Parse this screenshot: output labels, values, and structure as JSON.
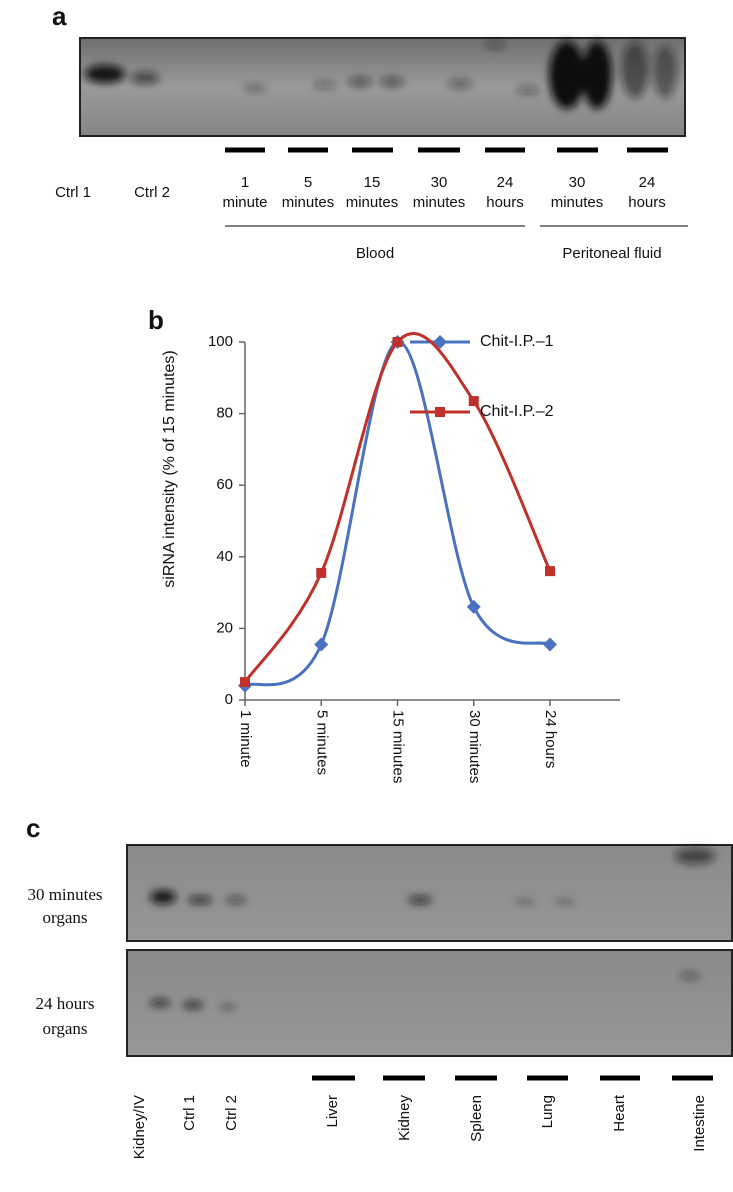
{
  "panel_a": {
    "label": "a",
    "control_lanes": [
      "Ctrl 1",
      "Ctrl 2"
    ],
    "time_lanes": [
      [
        "1",
        "minute"
      ],
      [
        "5",
        "minutes"
      ],
      [
        "15",
        "minutes"
      ],
      [
        "30",
        "minutes"
      ],
      [
        "24",
        "hours"
      ],
      [
        "30",
        "minutes"
      ],
      [
        "24",
        "hours"
      ]
    ],
    "groups": [
      "Blood",
      "Peritoneal fluid"
    ]
  },
  "panel_b_label": "b",
  "chart_data": {
    "type": "line",
    "y_label": "siRNA intensity (% of 15 minutes)",
    "categories": [
      "1 minute",
      "5 minutes",
      "15 minutes",
      "30 minutes",
      "24 hours"
    ],
    "series": [
      {
        "name": "Chit-I.P.–1",
        "color": "#4a72c0",
        "marker": "diamond",
        "values": [
          4,
          15.5,
          100,
          26,
          15.5
        ]
      },
      {
        "name": "Chit-I.P.–2",
        "color": "#c0312b",
        "marker": "square",
        "values": [
          5,
          35.5,
          100,
          83.5,
          36
        ]
      }
    ],
    "ylim": [
      0,
      100
    ],
    "yticks": [
      0,
      20,
      40,
      60,
      80,
      100
    ],
    "smooth": true
  },
  "panel_c": {
    "label": "c",
    "rows": [
      [
        "30 minutes",
        "organs"
      ],
      [
        "24 hours",
        "organs"
      ]
    ],
    "lanes": [
      "Kidney/IV",
      "Ctrl 1",
      "Ctrl 2",
      "Liver",
      "Kidney",
      "Spleen",
      "Lung",
      "Heart",
      "Intestine"
    ]
  }
}
